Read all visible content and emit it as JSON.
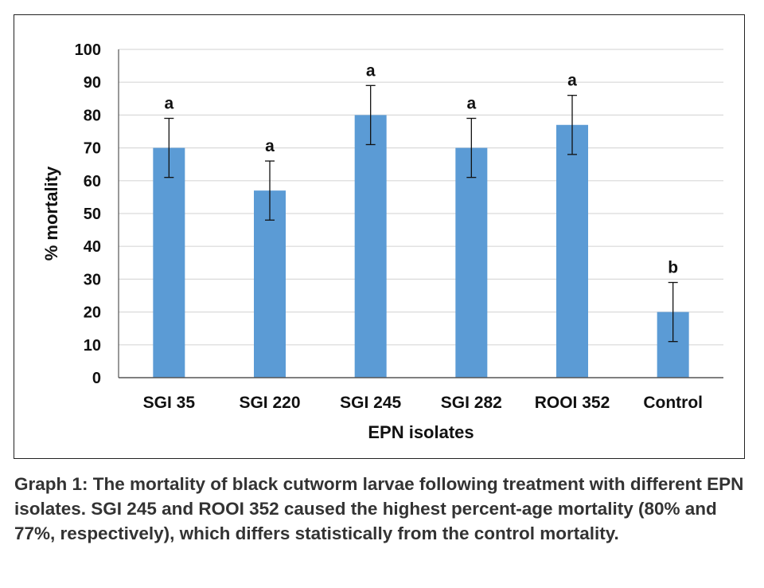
{
  "chart_data": {
    "type": "bar",
    "categories": [
      "SGI 35",
      "SGI 220",
      "SGI 245",
      "SGI 282",
      "ROOI 352",
      "Control"
    ],
    "series": [
      {
        "values": [
          70,
          57,
          80,
          70,
          77,
          20
        ],
        "error": [
          9,
          9,
          9,
          9,
          9,
          9
        ],
        "significance_letters": [
          "a",
          "a",
          "a",
          "a",
          "a",
          "b"
        ]
      }
    ],
    "xlabel": "EPN isolates",
    "ylabel": "% mortality",
    "ylim": [
      0,
      100
    ],
    "yticks": [
      0,
      10,
      20,
      30,
      40,
      50,
      60,
      70,
      80,
      90,
      100
    ],
    "grid": "horizontal",
    "legend": "none",
    "colors": {
      "bar": "#5b9bd5",
      "grid": "#d9d9d9",
      "axis": "#555555"
    }
  },
  "caption": "Graph 1: The mortality of black cutworm larvae following treatment with different EPN isolates. SGI 245 and ROOI 352 caused the highest percent-age mortality (80% and 77%, respectively), which differs statistically from the control mortality."
}
